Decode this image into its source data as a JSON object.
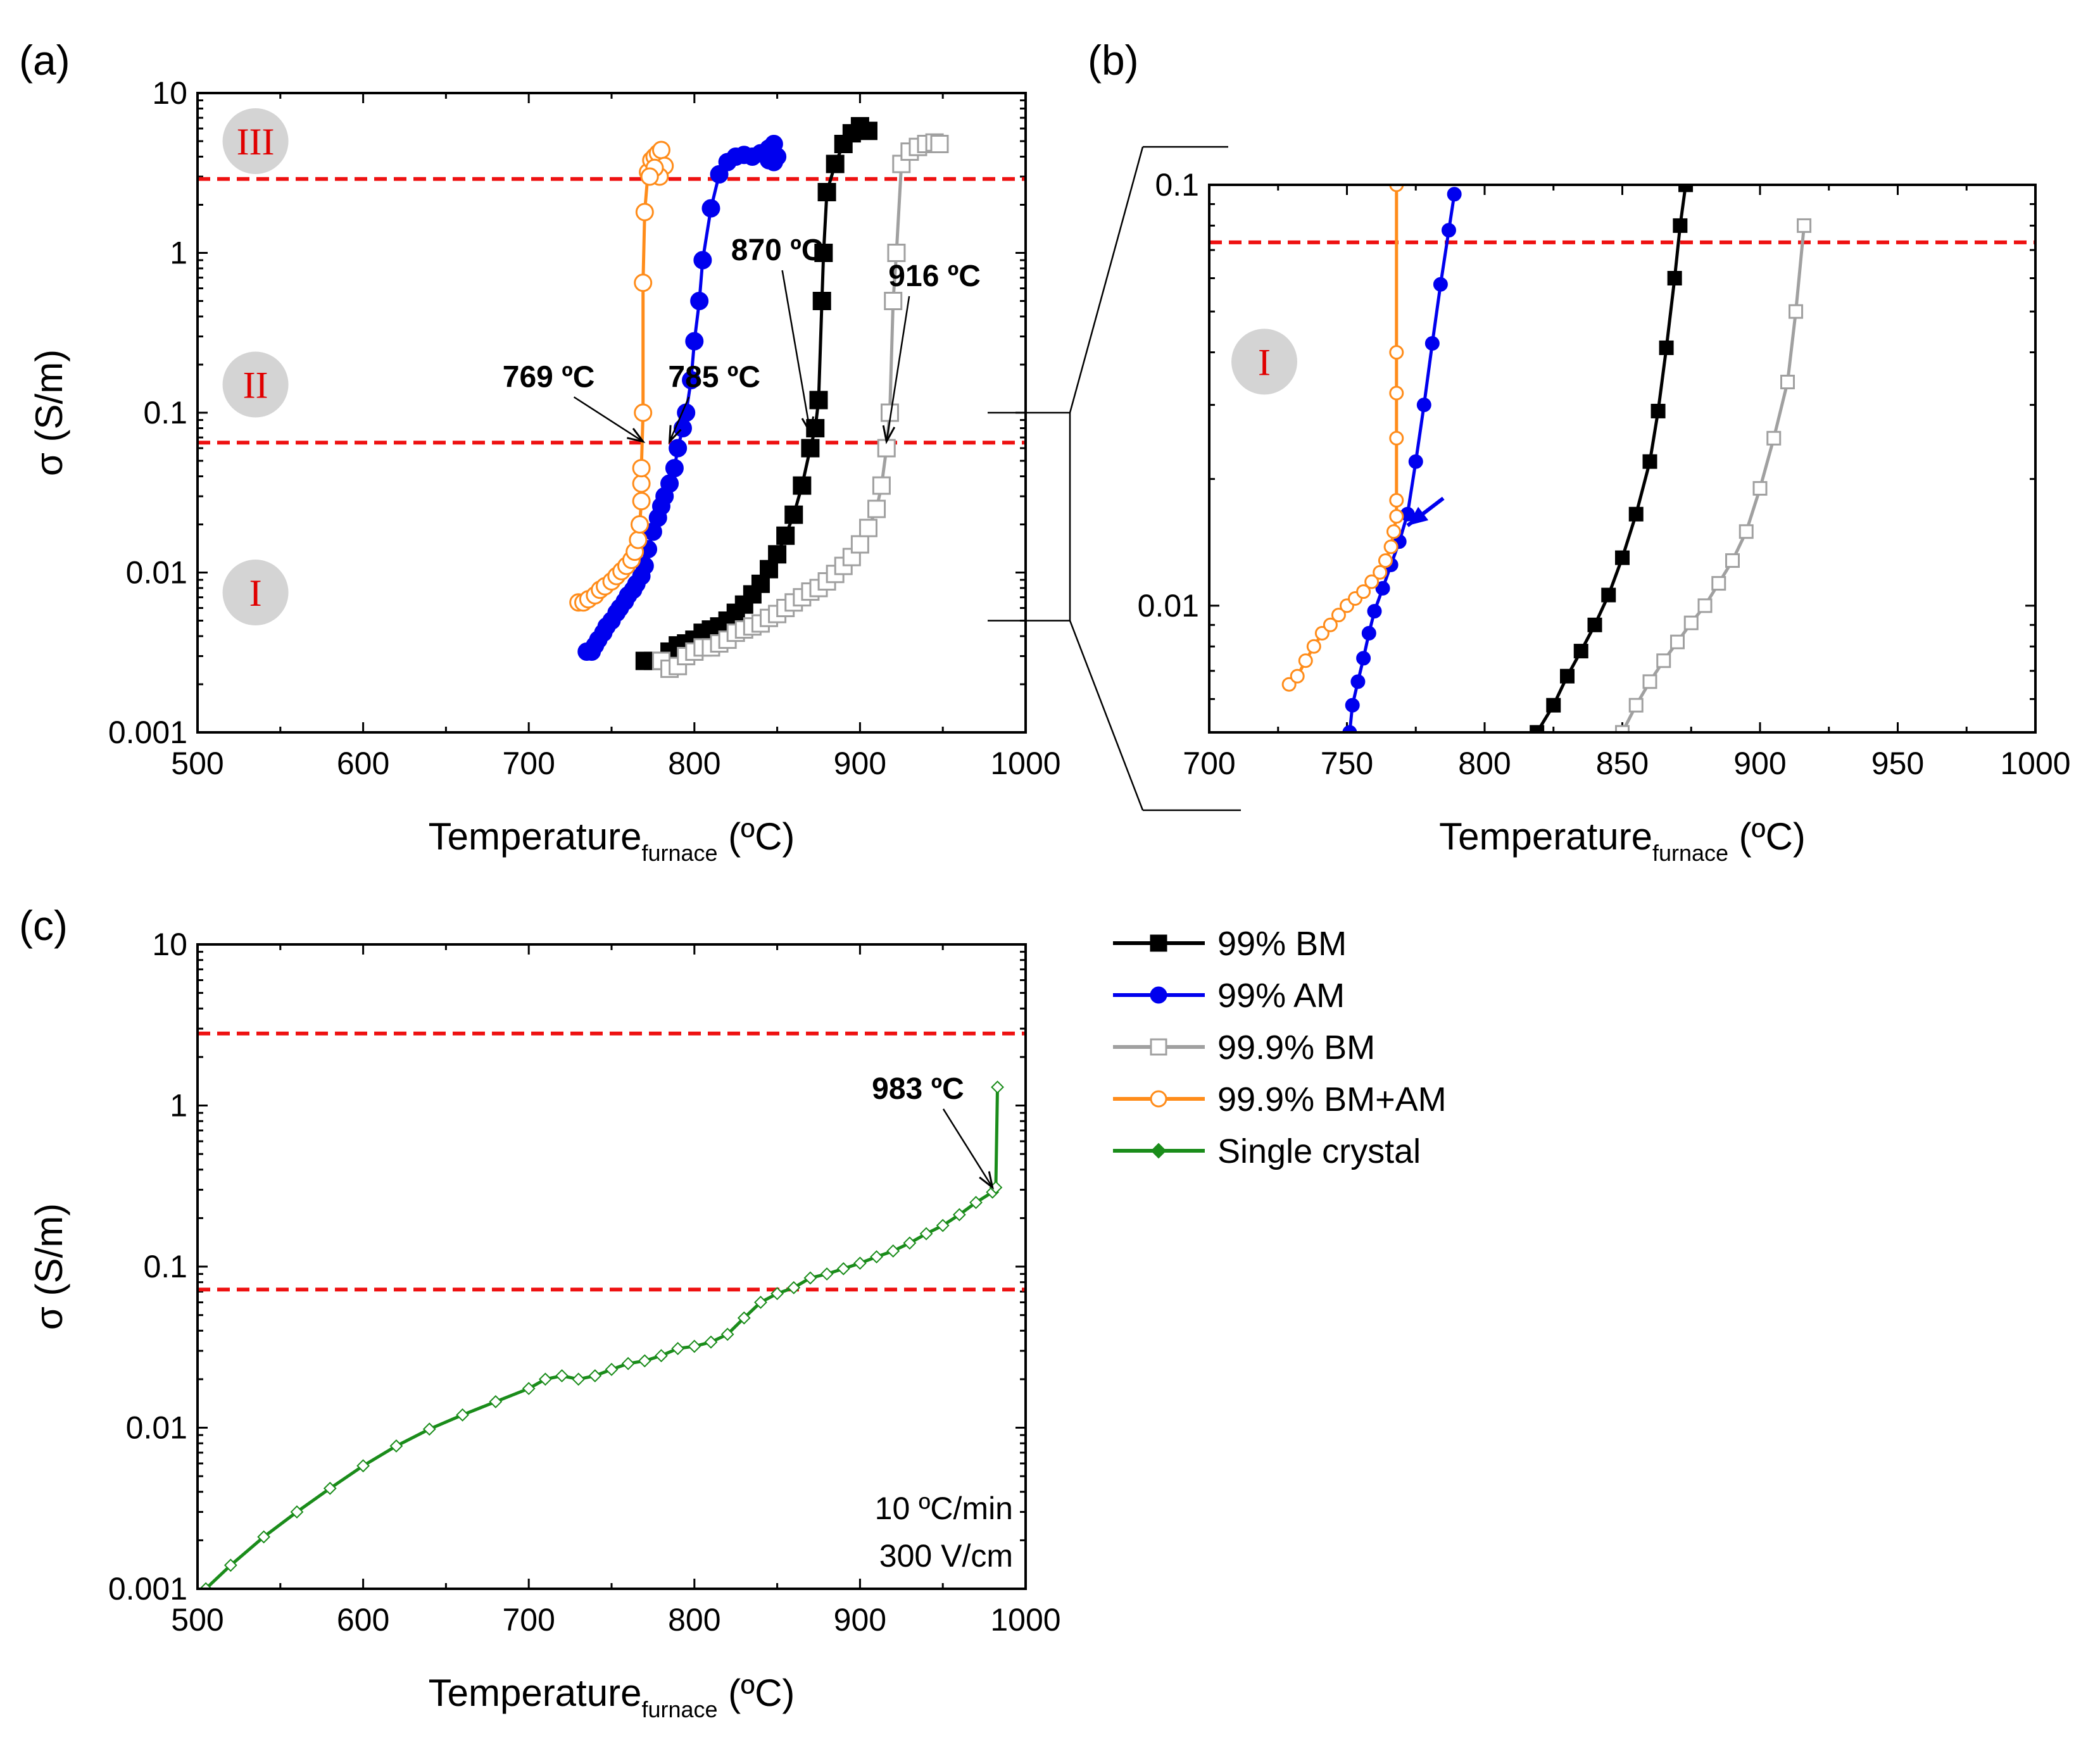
{
  "colors": {
    "bm99": "#000000",
    "am99": "#0000ee",
    "bm999": "#a0a0a0",
    "bmam999": "#ff8c1a",
    "single": "#1a8c1a",
    "threshold": "#ee1111",
    "region_text": "#e00000",
    "region_circle": "#d4d4d4"
  },
  "chart_data": [
    {
      "panel": "(a)",
      "type": "scatter",
      "xlabel_main": "Temperature",
      "xlabel_sub": "furnace",
      "xlabel_unit": " (ºC)",
      "ylabel": "σ (S/m)",
      "yscale": "log",
      "xlim": [
        500,
        1000
      ],
      "ylim": [
        0.001,
        10
      ],
      "xticks": [
        "500",
        "600",
        "700",
        "800",
        "900",
        "1000"
      ],
      "yticks": [
        "0.001",
        "0.01",
        "0.1",
        "1",
        "10"
      ],
      "thresholds": [
        0.065,
        2.9
      ],
      "regions": [
        {
          "label": "III",
          "x": 535,
          "y": 5.0
        },
        {
          "label": "II",
          "x": 535,
          "y": 0.15
        },
        {
          "label": "I",
          "x": 535,
          "y": 0.0075
        }
      ],
      "annotations": [
        {
          "text": "769 ºC",
          "x": 712,
          "y": 0.145,
          "arrow_to": [
            769,
            0.066
          ]
        },
        {
          "text": "785 ºC",
          "x": 812,
          "y": 0.145,
          "arrow_to": [
            785,
            0.066
          ]
        },
        {
          "text": "870 ºC",
          "x": 850,
          "y": 0.9,
          "arrow_to": [
            870,
            0.075
          ]
        },
        {
          "text": "916 ºC",
          "x": 945,
          "y": 0.62,
          "arrow_to": [
            916,
            0.066
          ]
        }
      ],
      "series": [
        {
          "name": "99% BM",
          "color_key": "bm99",
          "marker": "square",
          "filled": true,
          "x": [
            770,
            775,
            780,
            785,
            790,
            795,
            800,
            805,
            810,
            815,
            820,
            825,
            830,
            835,
            840,
            845,
            850,
            855,
            860,
            865,
            870,
            873,
            875,
            877,
            878,
            880,
            885,
            890,
            895,
            900,
            905
          ],
          "y": [
            0.0028,
            0.0028,
            0.0028,
            0.0032,
            0.0035,
            0.0036,
            0.0038,
            0.0042,
            0.0044,
            0.0046,
            0.005,
            0.0056,
            0.0063,
            0.0073,
            0.0085,
            0.0105,
            0.013,
            0.017,
            0.023,
            0.035,
            0.06,
            0.08,
            0.12,
            0.5,
            1.0,
            2.4,
            3.6,
            4.8,
            5.6,
            6.2,
            5.8
          ]
        },
        {
          "name": "99% AM",
          "color_key": "am99",
          "marker": "circle",
          "filled": true,
          "x": [
            735,
            738,
            740,
            742,
            745,
            747,
            750,
            753,
            755,
            758,
            760,
            763,
            765,
            768,
            770,
            772,
            775,
            778,
            780,
            782,
            785,
            788,
            790,
            793,
            795,
            798,
            800,
            803,
            805,
            810,
            815,
            820,
            825,
            830,
            835,
            840,
            845,
            848,
            850,
            848,
            845
          ],
          "y": [
            0.0032,
            0.0032,
            0.0035,
            0.0038,
            0.0042,
            0.0046,
            0.005,
            0.0056,
            0.006,
            0.0066,
            0.0072,
            0.0078,
            0.0085,
            0.0095,
            0.011,
            0.014,
            0.018,
            0.022,
            0.026,
            0.03,
            0.036,
            0.045,
            0.06,
            0.08,
            0.1,
            0.16,
            0.28,
            0.5,
            0.9,
            1.9,
            3.1,
            3.7,
            4.0,
            4.1,
            4.0,
            4.2,
            4.5,
            4.8,
            4.0,
            3.7,
            3.8
          ]
        },
        {
          "name": "99.9% BM",
          "color_key": "bm999",
          "marker": "square",
          "filled": false,
          "x": [
            780,
            785,
            790,
            795,
            800,
            805,
            810,
            815,
            820,
            825,
            830,
            835,
            840,
            845,
            850,
            855,
            860,
            865,
            870,
            875,
            880,
            885,
            890,
            895,
            900,
            905,
            910,
            913,
            916,
            918,
            920,
            922,
            925,
            930,
            935,
            940,
            945,
            948
          ],
          "y": [
            0.0028,
            0.0025,
            0.0026,
            0.003,
            0.0032,
            0.0034,
            0.0034,
            0.0036,
            0.0038,
            0.0042,
            0.0044,
            0.0046,
            0.0048,
            0.0052,
            0.0055,
            0.006,
            0.0065,
            0.007,
            0.0076,
            0.008,
            0.0088,
            0.0098,
            0.011,
            0.0125,
            0.015,
            0.019,
            0.025,
            0.035,
            0.06,
            0.1,
            0.5,
            1.0,
            3.6,
            4.3,
            4.6,
            4.8,
            4.9,
            4.8
          ]
        },
        {
          "name": "99.9% BM+AM",
          "color_key": "bmam999",
          "marker": "circle",
          "filled": false,
          "x": [
            730,
            733,
            736,
            740,
            743,
            746,
            750,
            753,
            756,
            759,
            762,
            764,
            766,
            767,
            768,
            768,
            768,
            769,
            769,
            770,
            772,
            774,
            776,
            778,
            780,
            782,
            779,
            776,
            773
          ],
          "y": [
            0.0065,
            0.0065,
            0.0068,
            0.0072,
            0.0078,
            0.0082,
            0.0088,
            0.0095,
            0.0102,
            0.011,
            0.012,
            0.0135,
            0.016,
            0.02,
            0.028,
            0.036,
            0.045,
            0.1,
            0.65,
            1.8,
            3.2,
            3.8,
            4.0,
            4.2,
            4.4,
            3.5,
            3.0,
            3.4,
            3.0
          ]
        }
      ]
    },
    {
      "panel": "(b)",
      "type": "scatter",
      "xlabel_main": "Temperature",
      "xlabel_sub": "furnace",
      "xlabel_unit": " (ºC)",
      "yscale": "log",
      "xlim": [
        700,
        1000
      ],
      "ylim": [
        0.005,
        0.1
      ],
      "xticks": [
        "700",
        "750",
        "800",
        "850",
        "900",
        "950",
        "1000"
      ],
      "yticks": [
        "0.01",
        "0.1"
      ],
      "thresholds": [
        0.073
      ],
      "regions": [
        {
          "label": "I",
          "x": 720,
          "y": 0.038
        }
      ],
      "arrow": {
        "from": [
          785,
          0.018
        ],
        "to": [
          772,
          0.0155
        ]
      },
      "series": [
        {
          "name": "99% BM",
          "color_key": "bm99",
          "marker": "square",
          "filled": true,
          "x": [
            819,
            825,
            830,
            835,
            840,
            845,
            850,
            855,
            860,
            863,
            866,
            869,
            871,
            873
          ],
          "y": [
            0.005,
            0.0058,
            0.0068,
            0.0078,
            0.009,
            0.0106,
            0.013,
            0.0165,
            0.022,
            0.029,
            0.041,
            0.06,
            0.08,
            0.1
          ]
        },
        {
          "name": "99% AM",
          "color_key": "am99",
          "marker": "circle",
          "filled": true,
          "x": [
            751,
            752,
            754,
            756,
            758,
            760,
            763,
            766,
            769,
            772,
            775,
            778,
            781,
            784,
            787,
            789
          ],
          "y": [
            0.005,
            0.0058,
            0.0066,
            0.0075,
            0.0086,
            0.0097,
            0.011,
            0.0125,
            0.0142,
            0.0165,
            0.022,
            0.03,
            0.042,
            0.058,
            0.078,
            0.095
          ]
        },
        {
          "name": "99.9% BM",
          "color_key": "bm999",
          "marker": "square",
          "filled": false,
          "x": [
            850,
            855,
            860,
            865,
            870,
            875,
            880,
            885,
            890,
            895,
            900,
            905,
            910,
            913,
            916
          ],
          "y": [
            0.005,
            0.0058,
            0.0066,
            0.0074,
            0.0082,
            0.0091,
            0.01,
            0.0113,
            0.0128,
            0.015,
            0.019,
            0.025,
            0.034,
            0.05,
            0.08
          ]
        },
        {
          "name": "99.9% BM+AM",
          "color_key": "bmam999",
          "marker": "circle",
          "filled": false,
          "x": [
            729,
            732,
            735,
            738,
            741,
            744,
            747,
            750,
            753,
            756,
            759,
            762,
            764,
            766,
            767,
            768,
            768,
            768,
            768,
            768,
            768
          ],
          "y": [
            0.0065,
            0.0068,
            0.0074,
            0.008,
            0.0086,
            0.009,
            0.0095,
            0.01,
            0.0104,
            0.0108,
            0.0114,
            0.012,
            0.0128,
            0.0138,
            0.015,
            0.0163,
            0.0178,
            0.025,
            0.032,
            0.04,
            0.1
          ]
        }
      ]
    },
    {
      "panel": "(c)",
      "type": "line",
      "xlabel_main": "Temperature",
      "xlabel_sub": "furnace",
      "xlabel_unit": " (ºC)",
      "ylabel": "σ (S/m)",
      "yscale": "log",
      "xlim": [
        500,
        1000
      ],
      "ylim": [
        0.001,
        10
      ],
      "xticks": [
        "500",
        "600",
        "700",
        "800",
        "900",
        "1000"
      ],
      "yticks": [
        "0.001",
        "0.01",
        "0.1",
        "1",
        "10"
      ],
      "thresholds": [
        0.072,
        2.8
      ],
      "annotations": [
        {
          "text": "983 ºC",
          "x": 935,
          "y": 1.1,
          "arrow_to": [
            980,
            0.31
          ]
        }
      ],
      "conditions": [
        "10 ºC/min",
        "300 V/cm"
      ],
      "series": [
        {
          "name": "Single crystal",
          "color_key": "single",
          "marker": "diamond",
          "x": [
            505,
            520,
            540,
            560,
            580,
            600,
            620,
            640,
            660,
            680,
            700,
            710,
            720,
            730,
            740,
            750,
            760,
            770,
            780,
            790,
            800,
            810,
            820,
            830,
            840,
            850,
            860,
            870,
            880,
            890,
            900,
            910,
            920,
            930,
            940,
            950,
            960,
            970,
            980,
            982,
            983
          ],
          "y": [
            0.001,
            0.0014,
            0.0021,
            0.003,
            0.0042,
            0.0058,
            0.0077,
            0.0098,
            0.012,
            0.0145,
            0.0175,
            0.02,
            0.021,
            0.02,
            0.021,
            0.023,
            0.025,
            0.026,
            0.028,
            0.031,
            0.032,
            0.034,
            0.038,
            0.048,
            0.06,
            0.068,
            0.074,
            0.085,
            0.09,
            0.097,
            0.105,
            0.115,
            0.125,
            0.14,
            0.16,
            0.18,
            0.21,
            0.25,
            0.29,
            0.31,
            1.3
          ]
        }
      ]
    }
  ],
  "legend": [
    {
      "label": "99% BM",
      "color_key": "bm99",
      "marker": "square",
      "filled": true
    },
    {
      "label": "99% AM",
      "color_key": "am99",
      "marker": "circle",
      "filled": true
    },
    {
      "label": "99.9% BM",
      "color_key": "bm999",
      "marker": "square",
      "filled": false
    },
    {
      "label": "99.9% BM+AM",
      "color_key": "bmam999",
      "marker": "circle",
      "filled": false
    },
    {
      "label": "Single crystal",
      "color_key": "single",
      "marker": "diamond",
      "filled": true
    }
  ]
}
